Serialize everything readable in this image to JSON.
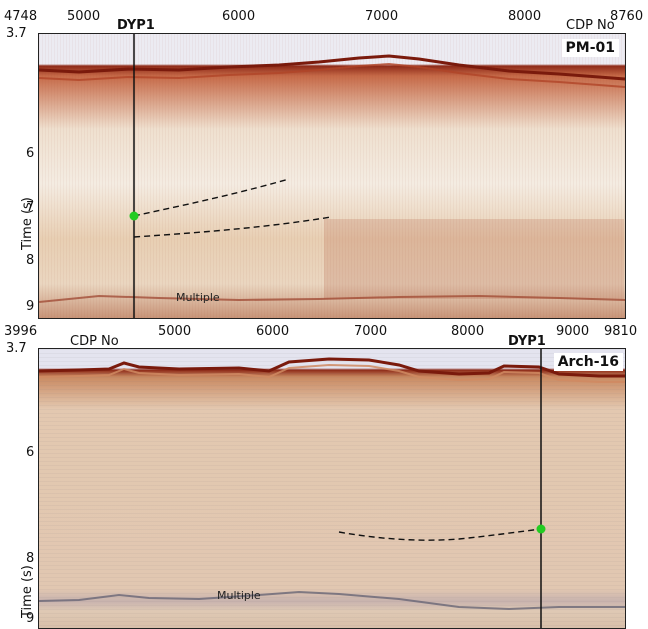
{
  "top": {
    "section_label": "PM-01",
    "well_label": "DYP1",
    "cdp_axis_label": "CDP No",
    "cdp_ticks": [
      "4748",
      "5000",
      "6000",
      "7000",
      "8000",
      "8760"
    ],
    "time_ticks": [
      "3.7",
      "6",
      "7",
      "8",
      "9"
    ],
    "time_axis_title": "Time (s)",
    "multiple_label": "Multiple"
  },
  "bottom": {
    "section_label": "Arch-16",
    "well_label": "DYP1",
    "cdp_axis_label": "CDP No",
    "cdp_ticks": [
      "3996",
      "5000",
      "6000",
      "7000",
      "8000",
      "9000",
      "9810"
    ],
    "time_ticks": [
      "3.7",
      "6",
      "8",
      "9"
    ],
    "time_axis_title": "Time (s)",
    "multiple_label": "Multiple"
  },
  "colors": {
    "well_marker": "#22cc22",
    "horizon_line": "#111111",
    "frame": "#222222"
  }
}
